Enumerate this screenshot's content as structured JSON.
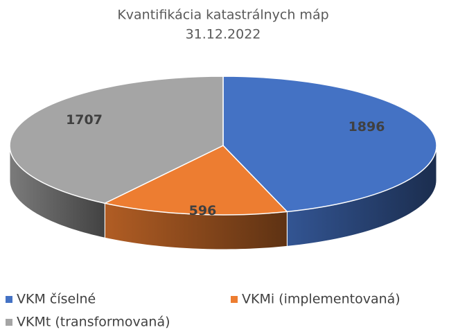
{
  "chart_data": {
    "type": "pie",
    "title": "Kvantifikácia katastrálnych máp",
    "subtitle": "31.12.2022",
    "categories": [
      "VKM číselné",
      "VKMi (implementovaná)",
      "VKMt (transformovaná)"
    ],
    "values": [
      1896,
      596,
      1707
    ],
    "colors": [
      "#4472c4",
      "#ed7d31",
      "#a5a5a5"
    ],
    "legend": "bottom"
  }
}
